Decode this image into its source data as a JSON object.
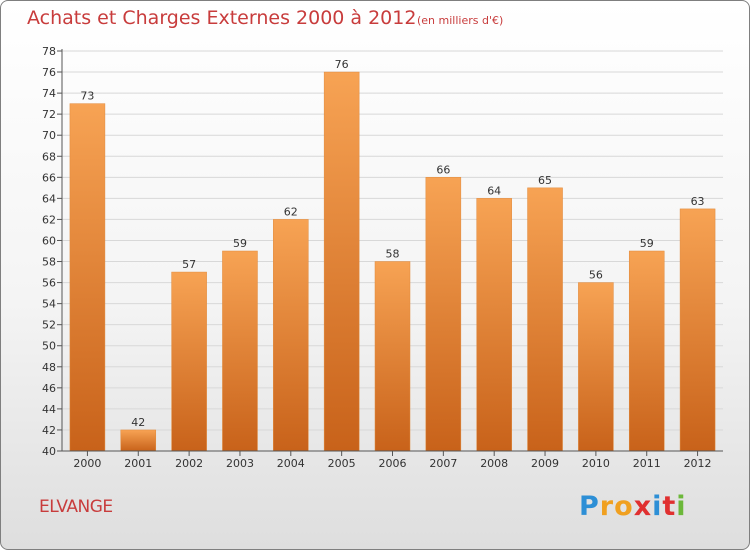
{
  "header": {
    "title": "Achats et Charges Externes 2000 à 2012",
    "unit": "(en milliers d'€)"
  },
  "footer": {
    "commune": "ELVANGE",
    "logo": [
      "P",
      "r",
      "o",
      "x",
      "i",
      "t",
      "i"
    ],
    "logo_colors": [
      "#2d8fd6",
      "#f0a020",
      "#f0a020",
      "#e03030",
      "#2d8fd6",
      "#e03030",
      "#6cb83a"
    ]
  },
  "colors": {
    "bar_top": "#f7a354",
    "bar_bottom": "#c8621a",
    "grid": "#d8d8d8",
    "axis": "#555555",
    "title": "#c83c3c"
  },
  "chart_data": {
    "type": "bar",
    "title": "Achats et Charges Externes 2000 à 2012",
    "categories": [
      "2000",
      "2001",
      "2002",
      "2003",
      "2004",
      "2005",
      "2006",
      "2007",
      "2008",
      "2009",
      "2010",
      "2011",
      "2012"
    ],
    "values": [
      73,
      42,
      57,
      59,
      62,
      76,
      58,
      66,
      64,
      65,
      56,
      59,
      63
    ],
    "ylim": [
      40,
      78
    ],
    "ytick_step": 2,
    "grid": true
  }
}
